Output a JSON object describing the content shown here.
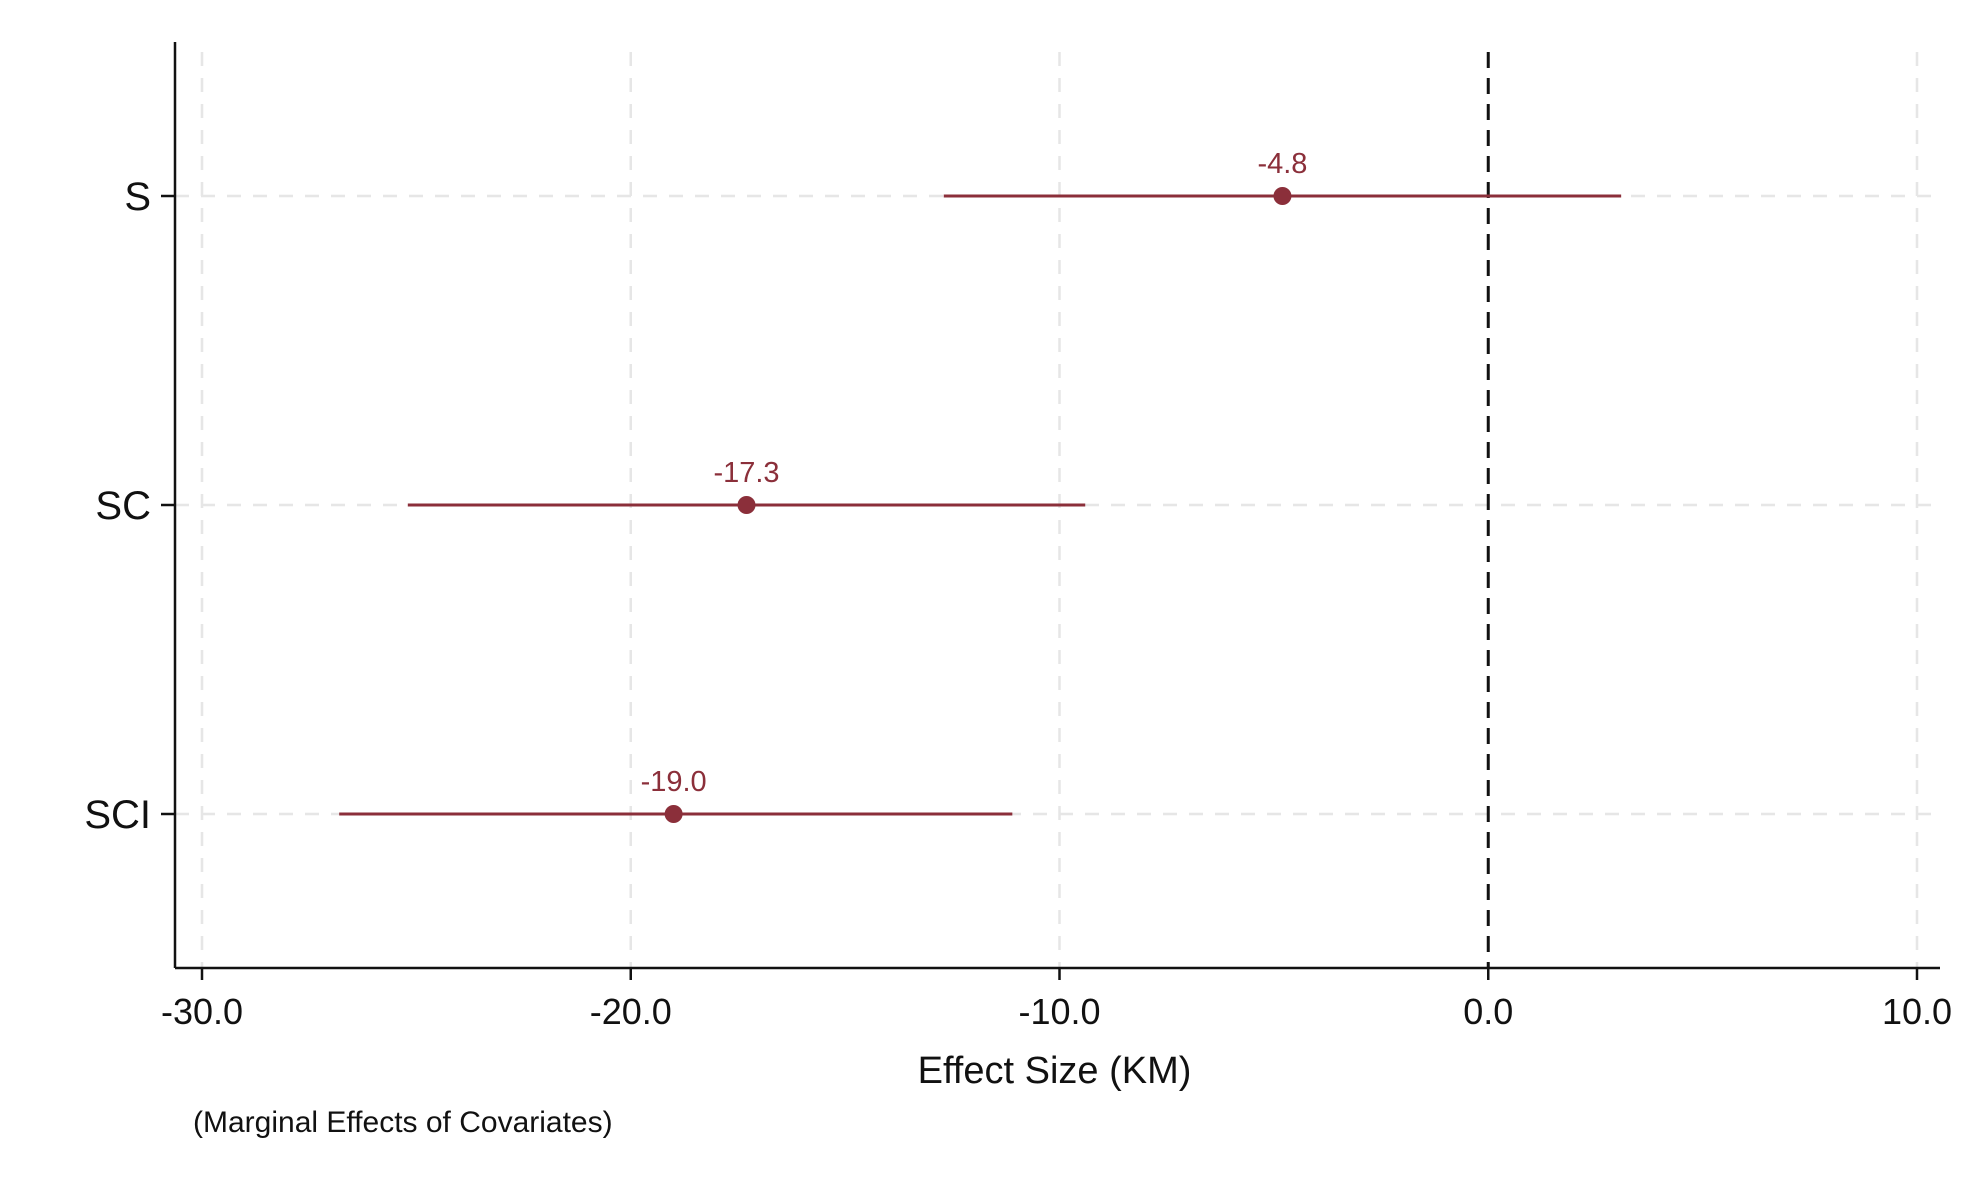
{
  "chart_data": {
    "type": "scatter",
    "subtype": "coefficient plot with confidence intervals",
    "xlabel": "Effect Size (KM)",
    "ylabel": "",
    "note": "(Marginal Effects of Covariates)",
    "xlim": [
      -30,
      10
    ],
    "xticks": [
      -30,
      -20,
      -10,
      0,
      10
    ],
    "xtick_labels": [
      "-30.0",
      "-20.0",
      "-10.0",
      "0.0",
      "10.0"
    ],
    "categories": [
      "S",
      "SC",
      "SCI"
    ],
    "series": [
      {
        "estimate": [
          -4.8,
          -17.3,
          -19.0
        ],
        "ci_low": [
          -12.7,
          -25.2,
          -26.8
        ],
        "ci_high": [
          3.1,
          -9.4,
          -11.1
        ],
        "labels": [
          "-4.8",
          "-17.3",
          "-19.0"
        ]
      }
    ],
    "reference_line": {
      "x": 0,
      "style": "dashed"
    },
    "grid": true,
    "color": "#8b2f3a"
  }
}
